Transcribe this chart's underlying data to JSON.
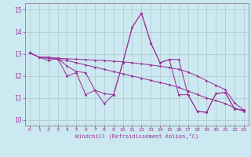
{
  "xlabel": "Windchill (Refroidissement éolien,°C)",
  "background_color": "#cce8f0",
  "line_color": "#993399",
  "grid_color": "#b0c8d0",
  "xlim": [
    -0.5,
    23.5
  ],
  "ylim": [
    9.75,
    15.3
  ],
  "xticks": [
    0,
    1,
    2,
    3,
    4,
    5,
    6,
    7,
    8,
    9,
    10,
    11,
    12,
    13,
    14,
    15,
    16,
    17,
    18,
    19,
    20,
    21,
    22,
    23
  ],
  "yticks": [
    10,
    11,
    12,
    13,
    14,
    15
  ],
  "s1": [
    13.05,
    12.85,
    12.83,
    12.8,
    12.78,
    12.76,
    12.74,
    12.72,
    12.7,
    12.67,
    12.64,
    12.6,
    12.55,
    12.5,
    12.44,
    12.38,
    12.3,
    12.18,
    12.0,
    11.78,
    11.58,
    11.38,
    10.78,
    10.45
  ],
  "s2": [
    13.05,
    12.85,
    12.7,
    12.8,
    12.0,
    12.15,
    11.15,
    11.35,
    10.75,
    11.15,
    12.6,
    14.2,
    14.85,
    13.5,
    12.6,
    12.75,
    11.15,
    11.15,
    10.4,
    10.35,
    11.2,
    11.25,
    10.5,
    10.45
  ],
  "s3": [
    13.05,
    12.85,
    12.85,
    12.8,
    12.45,
    12.2,
    12.15,
    11.35,
    11.2,
    11.15,
    12.6,
    14.2,
    14.85,
    13.5,
    12.6,
    12.75,
    12.75,
    11.15,
    10.4,
    10.35,
    11.2,
    11.25,
    10.5,
    10.45
  ],
  "s4": [
    13.05,
    12.85,
    12.8,
    12.75,
    12.7,
    12.6,
    12.5,
    12.4,
    12.3,
    12.2,
    12.1,
    12.0,
    11.9,
    11.8,
    11.7,
    11.6,
    11.48,
    11.32,
    11.16,
    11.0,
    10.88,
    10.75,
    10.55,
    10.4
  ]
}
